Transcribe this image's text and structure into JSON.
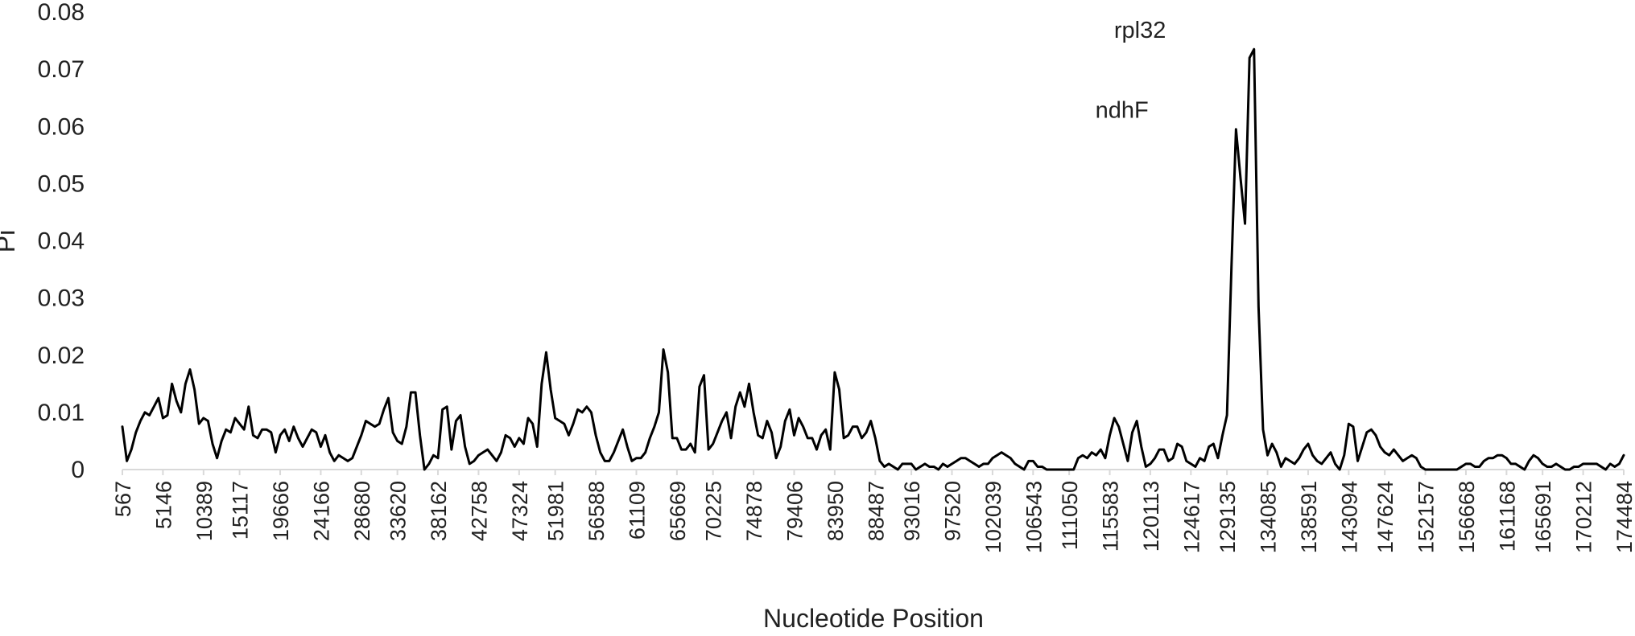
{
  "chart_data": {
    "type": "line",
    "title": "",
    "xlabel": "Nucleotide Position",
    "ylabel": "Pi",
    "ylim": [
      0,
      0.08
    ],
    "yticks": [
      "0",
      "0.01",
      "0.02",
      "0.03",
      "0.04",
      "0.05",
      "0.06",
      "0.07",
      "0.08"
    ],
    "xtick_labels": [
      "567",
      "5146",
      "10389",
      "15117",
      "19666",
      "24166",
      "28680",
      "33620",
      "38162",
      "42758",
      "47324",
      "51981",
      "56588",
      "61109",
      "65669",
      "70225",
      "74878",
      "79406",
      "83950",
      "88487",
      "93016",
      "97520",
      "102039",
      "106543",
      "111050",
      "115583",
      "120113",
      "124617",
      "129135",
      "134085",
      "138591",
      "143094",
      "147624",
      "152157",
      "156668",
      "161168",
      "165691",
      "170212",
      "174484"
    ],
    "grid": false,
    "legend": "none",
    "line_color": "#000000",
    "annotations": [
      {
        "text": "ndhF",
        "x_index": 221,
        "y": 0.059
      },
      {
        "text": "rpl32",
        "x_index": 225,
        "y": 0.073
      }
    ],
    "series": [
      {
        "values": [
          0.0075,
          0.0015,
          0.0035,
          0.0065,
          0.0085,
          0.01,
          0.0095,
          0.011,
          0.0125,
          0.009,
          0.0095,
          0.015,
          0.012,
          0.01,
          0.015,
          0.0175,
          0.014,
          0.008,
          0.009,
          0.0085,
          0.0045,
          0.002,
          0.005,
          0.007,
          0.0065,
          0.009,
          0.008,
          0.007,
          0.011,
          0.006,
          0.0055,
          0.007,
          0.007,
          0.0065,
          0.003,
          0.006,
          0.007,
          0.005,
          0.0075,
          0.0055,
          0.004,
          0.0055,
          0.007,
          0.0065,
          0.004,
          0.006,
          0.003,
          0.0015,
          0.0025,
          0.002,
          0.0015,
          0.002,
          0.004,
          0.006,
          0.0085,
          0.008,
          0.0075,
          0.008,
          0.0105,
          0.0125,
          0.0065,
          0.005,
          0.0045,
          0.0075,
          0.0135,
          0.0135,
          0.006,
          0.0,
          0.001,
          0.0025,
          0.002,
          0.0105,
          0.011,
          0.0035,
          0.0085,
          0.0095,
          0.004,
          0.001,
          0.0015,
          0.0025,
          0.003,
          0.0035,
          0.0025,
          0.0015,
          0.003,
          0.006,
          0.0055,
          0.004,
          0.0055,
          0.0045,
          0.009,
          0.008,
          0.004,
          0.015,
          0.0205,
          0.014,
          0.009,
          0.0085,
          0.008,
          0.006,
          0.008,
          0.0105,
          0.01,
          0.011,
          0.01,
          0.006,
          0.003,
          0.0015,
          0.0015,
          0.003,
          0.005,
          0.007,
          0.004,
          0.0015,
          0.002,
          0.002,
          0.003,
          0.0055,
          0.0075,
          0.01,
          0.021,
          0.017,
          0.0055,
          0.0055,
          0.0035,
          0.0035,
          0.0045,
          0.003,
          0.0145,
          0.0165,
          0.0035,
          0.0045,
          0.0065,
          0.0085,
          0.01,
          0.0055,
          0.011,
          0.0135,
          0.011,
          0.015,
          0.01,
          0.006,
          0.0055,
          0.0085,
          0.0065,
          0.002,
          0.004,
          0.0085,
          0.0105,
          0.006,
          0.009,
          0.0075,
          0.0055,
          0.0055,
          0.0035,
          0.006,
          0.007,
          0.0035,
          0.017,
          0.014,
          0.0055,
          0.006,
          0.0075,
          0.0075,
          0.0055,
          0.0065,
          0.0085,
          0.0055,
          0.0015,
          0.0005,
          0.001,
          0.0005,
          0.0,
          0.001,
          0.001,
          0.001,
          0.0,
          0.0005,
          0.001,
          0.0005,
          0.0005,
          0.0,
          0.001,
          0.0005,
          0.001,
          0.0015,
          0.002,
          0.002,
          0.0015,
          0.001,
          0.0005,
          0.001,
          0.001,
          0.002,
          0.0025,
          0.003,
          0.0025,
          0.002,
          0.001,
          0.0005,
          0.0,
          0.0015,
          0.0015,
          0.0005,
          0.0005,
          0.0,
          0.0,
          0.0,
          0.0,
          0.0,
          0.0,
          0.0,
          0.002,
          0.0025,
          0.002,
          0.003,
          0.0025,
          0.0035,
          0.002,
          0.006,
          0.009,
          0.0075,
          0.0045,
          0.0015,
          0.0065,
          0.0085,
          0.004,
          0.0005,
          0.001,
          0.002,
          0.0035,
          0.0035,
          0.0015,
          0.002,
          0.0045,
          0.004,
          0.0015,
          0.001,
          0.0005,
          0.002,
          0.0015,
          0.004,
          0.0045,
          0.002,
          0.006,
          0.0095,
          0.0355,
          0.0595,
          0.051,
          0.043,
          0.072,
          0.0735,
          0.0285,
          0.007,
          0.0025,
          0.0045,
          0.003,
          0.0005,
          0.002,
          0.0015,
          0.001,
          0.002,
          0.0035,
          0.0045,
          0.0025,
          0.0015,
          0.001,
          0.002,
          0.003,
          0.001,
          0.0,
          0.0025,
          0.008,
          0.0075,
          0.0015,
          0.004,
          0.0065,
          0.007,
          0.006,
          0.004,
          0.003,
          0.0025,
          0.0035,
          0.0025,
          0.0015,
          0.002,
          0.0025,
          0.002,
          0.0005,
          0.0,
          0.0,
          0.0,
          0.0,
          0.0,
          0.0,
          0.0,
          0.0,
          0.0005,
          0.001,
          0.001,
          0.0005,
          0.0005,
          0.0015,
          0.002,
          0.002,
          0.0025,
          0.0025,
          0.002,
          0.001,
          0.001,
          0.0005,
          0.0,
          0.0015,
          0.0025,
          0.002,
          0.001,
          0.0005,
          0.0005,
          0.001,
          0.0005,
          0.0,
          0.0,
          0.0005,
          0.0005,
          0.001,
          0.001,
          0.001,
          0.001,
          0.0005,
          0.0,
          0.001,
          0.0005,
          0.001,
          0.0025
        ]
      }
    ]
  }
}
